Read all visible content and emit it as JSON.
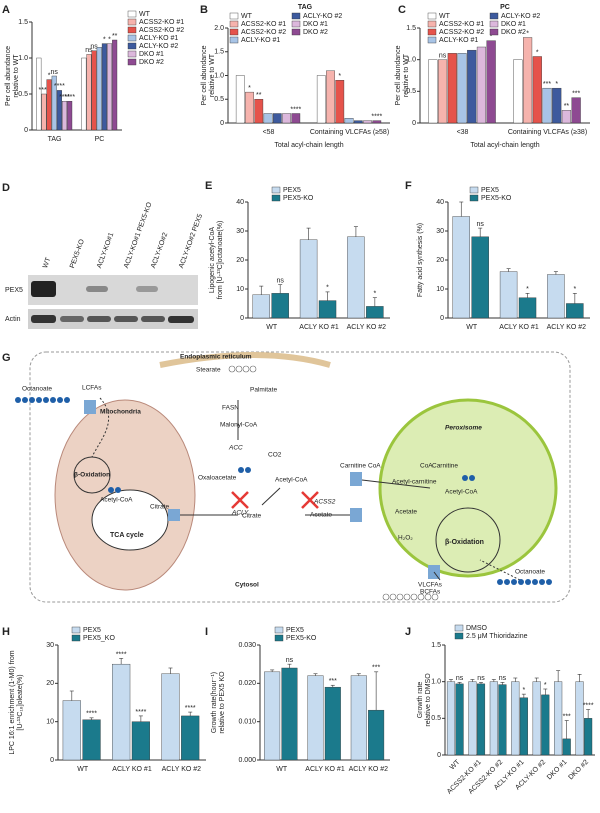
{
  "chart_data": [
    {
      "type": "bar",
      "label": "A",
      "ylabel": [
        "Per cell abundance",
        "relative to WT"
      ],
      "categories": [
        "TAG",
        "PC"
      ],
      "ylim": [
        0,
        1.5
      ],
      "yticks": [
        0,
        0.5,
        {
          "value": 1,
          "label": "1.0"
        },
        1.5
      ],
      "series": [
        {
          "name": "WT",
          "color": "#ffffff",
          "values": [
            1.0,
            1.0
          ],
          "sig": [
            null,
            null
          ]
        },
        {
          "name": "ACSS2-KO #1",
          "color": "#f6b3ad",
          "values": [
            0.5,
            1.05
          ],
          "sig": [
            "****",
            "ns"
          ]
        },
        {
          "name": "ACSS2-KO #2",
          "color": "#e5534b",
          "values": [
            0.7,
            1.1
          ],
          "sig": [
            "*",
            "ns"
          ]
        },
        {
          "name": "ACLY-KO #1",
          "color": "#a8c4e6",
          "values": [
            0.75,
            1.15
          ],
          "sig": [
            "ns",
            null
          ]
        },
        {
          "name": "ACLY-KO #2",
          "color": "#3d5a9e",
          "values": [
            0.55,
            1.2
          ],
          "sig": [
            "****",
            "*"
          ]
        },
        {
          "name": "DKO #1",
          "color": "#dcb8dc",
          "values": [
            0.4,
            1.2
          ],
          "sig": [
            "****",
            "*"
          ]
        },
        {
          "name": "DKO #2",
          "color": "#8e4a92",
          "values": [
            0.4,
            1.25
          ],
          "sig": [
            "****",
            "**"
          ]
        }
      ]
    },
    {
      "type": "bar",
      "label": "B",
      "title": "TAG",
      "ylabel": [
        "Per cell abundance",
        "relative to WT"
      ],
      "xlabel": "Total acyl-chain length",
      "categories": [
        "<58",
        "Containing VLCFAs (≥58)"
      ],
      "ylim": [
        0,
        2
      ],
      "yticks": [
        0,
        0.5,
        {
          "value": 1,
          "label": "1.0"
        },
        1.5,
        {
          "value": 2,
          "label": "2.0"
        }
      ],
      "series": [
        {
          "name": "WT",
          "color": "#ffffff",
          "values": [
            1.0,
            1.0
          ],
          "sig": [
            null,
            null
          ]
        },
        {
          "name": "ACSS2-KO #1",
          "color": "#f6b3ad",
          "values": [
            0.65,
            1.1
          ],
          "sig": [
            "*",
            null
          ]
        },
        {
          "name": "ACSS2-KO #2",
          "color": "#e5534b",
          "values": [
            0.5,
            0.9
          ],
          "sig": [
            "**",
            "*"
          ]
        },
        {
          "name": "ACLY-KO #1",
          "color": "#a8c4e6",
          "values": [
            0.2,
            0.1
          ],
          "sig": [
            null,
            null
          ]
        },
        {
          "name": "ACLY-KO #2",
          "color": "#3d5a9e",
          "values": [
            0.2,
            0.05
          ],
          "sig": [
            null,
            null
          ]
        },
        {
          "name": "DKO #1",
          "color": "#dcb8dc",
          "values": [
            0.2,
            0.05
          ],
          "sig": [
            null,
            null
          ]
        },
        {
          "name": "DKO #2",
          "color": "#8e4a92",
          "values": [
            0.2,
            0.05
          ],
          "sig": [
            "****",
            "****"
          ]
        }
      ]
    },
    {
      "type": "bar",
      "label": "C",
      "title": "PC",
      "ylabel": [
        "Per cell abundance",
        "relative to WT"
      ],
      "xlabel": "Total acyl-chain length",
      "categories": [
        "<38",
        "Containing VLCFAs (≥38)"
      ],
      "ylim": [
        0,
        1.5
      ],
      "yticks": [
        0,
        0.5,
        {
          "value": 1,
          "label": "1.0"
        },
        1.5
      ],
      "series": [
        {
          "name": "WT",
          "color": "#ffffff",
          "values": [
            1.0,
            1.0
          ],
          "sig": [
            null,
            null
          ]
        },
        {
          "name": "ACSS2-KO #1",
          "color": "#f6b3ad",
          "values": [
            1.0,
            1.35
          ],
          "sig": [
            "ns",
            "*"
          ]
        },
        {
          "name": "ACSS2-KO #2",
          "color": "#e5534b",
          "values": [
            1.1,
            1.05
          ],
          "sig": [
            null,
            "*"
          ]
        },
        {
          "name": "ACLY-KO #1",
          "color": "#a8c4e6",
          "values": [
            1.1,
            0.55
          ],
          "sig": [
            null,
            "***"
          ]
        },
        {
          "name": "ACLY-KO #2",
          "color": "#3d5a9e",
          "values": [
            1.15,
            0.55
          ],
          "sig": [
            null,
            "*"
          ]
        },
        {
          "name": "DKO #1",
          "color": "#dcb8dc",
          "values": [
            1.2,
            0.2
          ],
          "sig": [
            null,
            "**"
          ]
        },
        {
          "name": "DKO #2",
          "color": "#8e4a92",
          "values": [
            1.3,
            0.4
          ],
          "sig": [
            "*",
            "***"
          ]
        }
      ]
    },
    {
      "type": "bar",
      "label": "E",
      "ylabel": [
        "Lipogenic acetyl-CoA",
        "from [U-¹³C]octanoate(%)"
      ],
      "categories": [
        "WT",
        "ACLY KO #1",
        "ACLY KO #2"
      ],
      "ylim": [
        0,
        40
      ],
      "yticks": [
        0,
        10,
        20,
        30,
        40
      ],
      "series": [
        {
          "name": "PEX5",
          "color": "#c6dbef",
          "values": [
            8,
            27,
            28
          ],
          "errors": [
            3,
            4,
            3.5
          ],
          "sig": [
            null,
            null,
            null
          ]
        },
        {
          "name": "PEX5-KO",
          "color": "#1b7a8c",
          "values": [
            8.5,
            6,
            4
          ],
          "errors": [
            3,
            3,
            3
          ],
          "sig": [
            "ns",
            "*",
            "*"
          ]
        }
      ]
    },
    {
      "type": "bar",
      "label": "F",
      "ylabel": [
        "Fatty acid synthesis (%)"
      ],
      "categories": [
        "WT",
        "ACLY KO #1",
        "ACLY KO #2"
      ],
      "ylim": [
        0,
        40
      ],
      "yticks": [
        0,
        10,
        20,
        30,
        40
      ],
      "series": [
        {
          "name": "PEX5",
          "color": "#c6dbef",
          "values": [
            35,
            16,
            15
          ],
          "errors": [
            5,
            1,
            1
          ],
          "sig": [
            null,
            null,
            null
          ]
        },
        {
          "name": "PEX5-KO",
          "color": "#1b7a8c",
          "values": [
            28,
            7,
            5
          ],
          "errors": [
            3,
            1.5,
            3.5
          ],
          "sig": [
            "ns",
            "*",
            "*"
          ]
        }
      ]
    },
    {
      "type": "bar",
      "label": "H",
      "ylabel": [
        "LPC 16:1 enrichment (1-M0) from",
        "[U-¹³C₁₈]oleate(%)"
      ],
      "categories": [
        "WT",
        "ACLY KO #1",
        "ACLY KO #2"
      ],
      "ylim": [
        0,
        30
      ],
      "yticks": [
        0,
        10,
        20,
        30
      ],
      "series": [
        {
          "name": "PEX5",
          "color": "#c6dbef",
          "values": [
            15.5,
            25,
            22.5
          ],
          "errors": [
            2.5,
            1.5,
            1.5
          ],
          "sig": [
            null,
            "****",
            null
          ]
        },
        {
          "name": "PEX5_KO",
          "color": "#1b7a8c",
          "values": [
            10.5,
            10,
            11.5
          ],
          "errors": [
            0.5,
            1.5,
            1
          ],
          "sig": [
            "****",
            "****",
            "****"
          ]
        }
      ]
    },
    {
      "type": "bar",
      "label": "I",
      "ylabel": [
        "Growth rate(hour⁻¹)",
        "relative to PEX5 KO"
      ],
      "categories": [
        "WT",
        "ACLY KO #1",
        "ACLY KO #2"
      ],
      "ylim": [
        0,
        0.03
      ],
      "yticks": [
        {
          "value": 0,
          "label": "0.000"
        },
        {
          "value": 0.01,
          "label": "0.010"
        },
        {
          "value": 0.02,
          "label": "0.020"
        },
        {
          "value": 0.03,
          "label": "0.030"
        }
      ],
      "series": [
        {
          "name": "PEX5",
          "color": "#c6dbef",
          "values": [
            0.023,
            0.022,
            0.022
          ],
          "errors": [
            0.0005,
            0.0005,
            0.0005
          ],
          "sig": [
            null,
            null,
            null
          ]
        },
        {
          "name": "PEX5-KO",
          "color": "#1b7a8c",
          "values": [
            0.024,
            0.019,
            0.013
          ],
          "errors": [
            0.001,
            0.0005,
            0.01
          ],
          "sig": [
            "ns",
            "***",
            "***"
          ]
        }
      ]
    },
    {
      "type": "bar",
      "label": "J",
      "ylabel": [
        "Growth rate",
        "relative to DMSO"
      ],
      "categories": [
        "WT",
        "ACSS2-KO #1",
        "ACSS2-KO #2",
        "ACLY-KO #1",
        "ACLY-KO #2",
        "DKO #1",
        "DKO #2"
      ],
      "ylim": [
        0,
        1.5
      ],
      "yticks": [
        0,
        0.5,
        {
          "value": 1,
          "label": "1.0"
        },
        1.5
      ],
      "series": [
        {
          "name": "DMSO",
          "color": "#c6dbef",
          "values": [
            1,
            1,
            1,
            1,
            1,
            1,
            1
          ],
          "errors": [
            0.03,
            0.03,
            0.03,
            0.05,
            0.05,
            0.15,
            0.1
          ],
          "sig": [
            null,
            null,
            null,
            null,
            null,
            null,
            null
          ]
        },
        {
          "name": "2.5 μM Thioridazine",
          "color": "#1b7a8c",
          "values": [
            0.97,
            0.97,
            0.96,
            0.78,
            0.82,
            0.22,
            0.5
          ],
          "errors": [
            0.02,
            0.02,
            0.03,
            0.05,
            0.08,
            0.25,
            0.12
          ],
          "sig": [
            "ns",
            "ns",
            "ns",
            "*",
            "*",
            "***",
            "****"
          ]
        }
      ]
    }
  ],
  "blot": {
    "label": "D",
    "lanes": [
      "WT",
      "PEX5-KO",
      "ACLY-KO#1",
      "ACLY-KO#1 PEX5-KO",
      "ACLY-KO#2",
      "ACLY-KO#2 PEX5"
    ],
    "rows": [
      "PEX5",
      "Actin"
    ]
  },
  "diagram": {
    "label": "G",
    "labels": [
      "Endoplasmic reticulum",
      "Stearate",
      "Palmitate",
      "FASN",
      "Malonyl-CoA",
      "ACC",
      "CO2",
      "LCFAs",
      "Octanoate",
      "Mitochondria",
      "β-Oxidation",
      "Acetyl-CoA",
      "Citrate",
      "TCA cycle",
      "Citrate",
      "Oxaloacetate",
      "Acetyl-CoA",
      "ACLY",
      "ACSS2",
      "Acetate",
      "Peroxisome",
      "Carnitine",
      "CoA",
      "Acetyl-carnitine",
      "CoA",
      "Carnitine",
      "Acetyl-CoA",
      "Acetate",
      "H₂O₂",
      "β-Oxidation",
      "Cytosol",
      "VLCFAs",
      "BCFAs",
      "Octanoate"
    ]
  }
}
